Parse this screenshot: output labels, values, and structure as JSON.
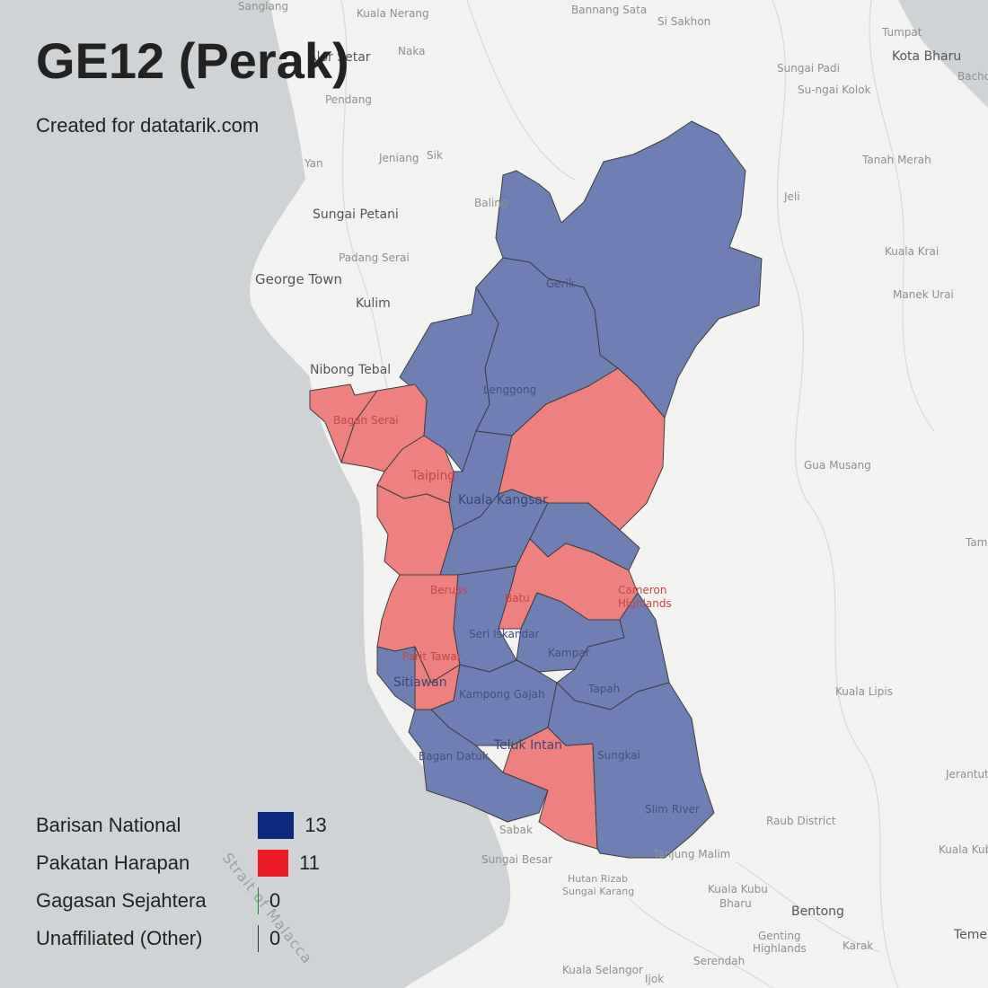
{
  "header": {
    "title": "GE12 (Perak)",
    "subtitle": "Created for datatarik.com"
  },
  "colors": {
    "barisan_national": "#0b2a7d",
    "pakatan_harapan": "#ec1c24",
    "gagasan_sejahtera": "#1a8a2a",
    "unaffiliated": "#333333",
    "bn_fill": "#6f7fb4",
    "ph_fill": "#ef8080",
    "sea": "#cfd3d5",
    "land": "#f2f2f0"
  },
  "legend": [
    {
      "label": "Barisan National",
      "count": "13",
      "value": 13,
      "color": "#0b2a7d"
    },
    {
      "label": "Pakatan Harapan",
      "count": "11",
      "value": 11,
      "color": "#ec1c24"
    },
    {
      "label": "Gagasan Sejahtera",
      "count": "0",
      "value": 0,
      "color": "#1a8a2a"
    },
    {
      "label": "Unaffiliated (Other)",
      "count": "0",
      "value": 0,
      "color": "#333333"
    }
  ],
  "places": {
    "sanglang": "Sanglang",
    "kuala_nerang": "Kuala Nerang",
    "bannang_sata": "Bannang Sata",
    "si_sakhon": "Si Sakhon",
    "tumpat": "Tumpat",
    "alor_setar": "Alor Setar",
    "naka": "Naka",
    "sungai_padi": "Sungai Padi",
    "kota_bharu": "Kota Bharu",
    "bachok": "Bacho",
    "su_ngai_kolok": "Su-ngai Kolok",
    "pendang": "Pendang",
    "yan": "Yan",
    "jeniang": "Jeniang",
    "sik": "Sik",
    "tanah_merah": "Tanah Merah",
    "jeli": "Jeli",
    "baling": "Baling",
    "sungai_petani": "Sungai Petani",
    "padang_serai": "Padang Serai",
    "kuala_krai": "Kuala Krai",
    "george_town": "George Town",
    "kulim": "Kulim",
    "manek_urai": "Manek Urai",
    "nibong_tebal": "Nibong Tebal",
    "gerik": "Gerik",
    "lenggong": "Lenggong",
    "bagan_serai": "Bagan Serai",
    "taiping": "Taiping",
    "kuala_kangsar": "Kuala Kangsar",
    "gua_musang": "Gua Musang",
    "beruas": "Beruas",
    "batu_gajah": "Batu",
    "cameron": "Cameron",
    "highlands": "Highlands",
    "seri_iskandar": "Seri Iskandar",
    "kampar": "Kampar",
    "pasir_tawar": "Parit Tawar",
    "sitiawan": "Sitiawan",
    "kampong_gajah": "Kampong Gajah",
    "tapah": "Tapah",
    "kuala_lipis": "Kuala Lipis",
    "teluk_intan": "Teluk Intan",
    "sungkai": "Sungkai",
    "bagan_datuk": "Bagan Datuk",
    "jerantut": "Jerantut",
    "slim_river": "Slim River",
    "raub_district": "Raub District",
    "tamanan": "Tama",
    "sabak": "Sabak",
    "tanjung_malim": "Tanjung Malim",
    "kuala_kubu_bharu_1": "Kuala Kubu",
    "kuala_kubu_bharu_2": "Bharu",
    "sungai_besar": "Sungai Besar",
    "hutan_rizab": "Hutan Rizab",
    "sungai_karang": "Sungai Karang",
    "bentong": "Bentong",
    "genting": "Genting",
    "genting_highlands": "Highlands",
    "karak": "Karak",
    "temerloh": "Teme",
    "serendah": "Serendah",
    "kuala_selangor": "Kuala Selangor",
    "ijok": "Ijok",
    "kuala_kubu_label": "Kuala Kubu",
    "strait_of_malacca": "Strait of Malacca"
  }
}
